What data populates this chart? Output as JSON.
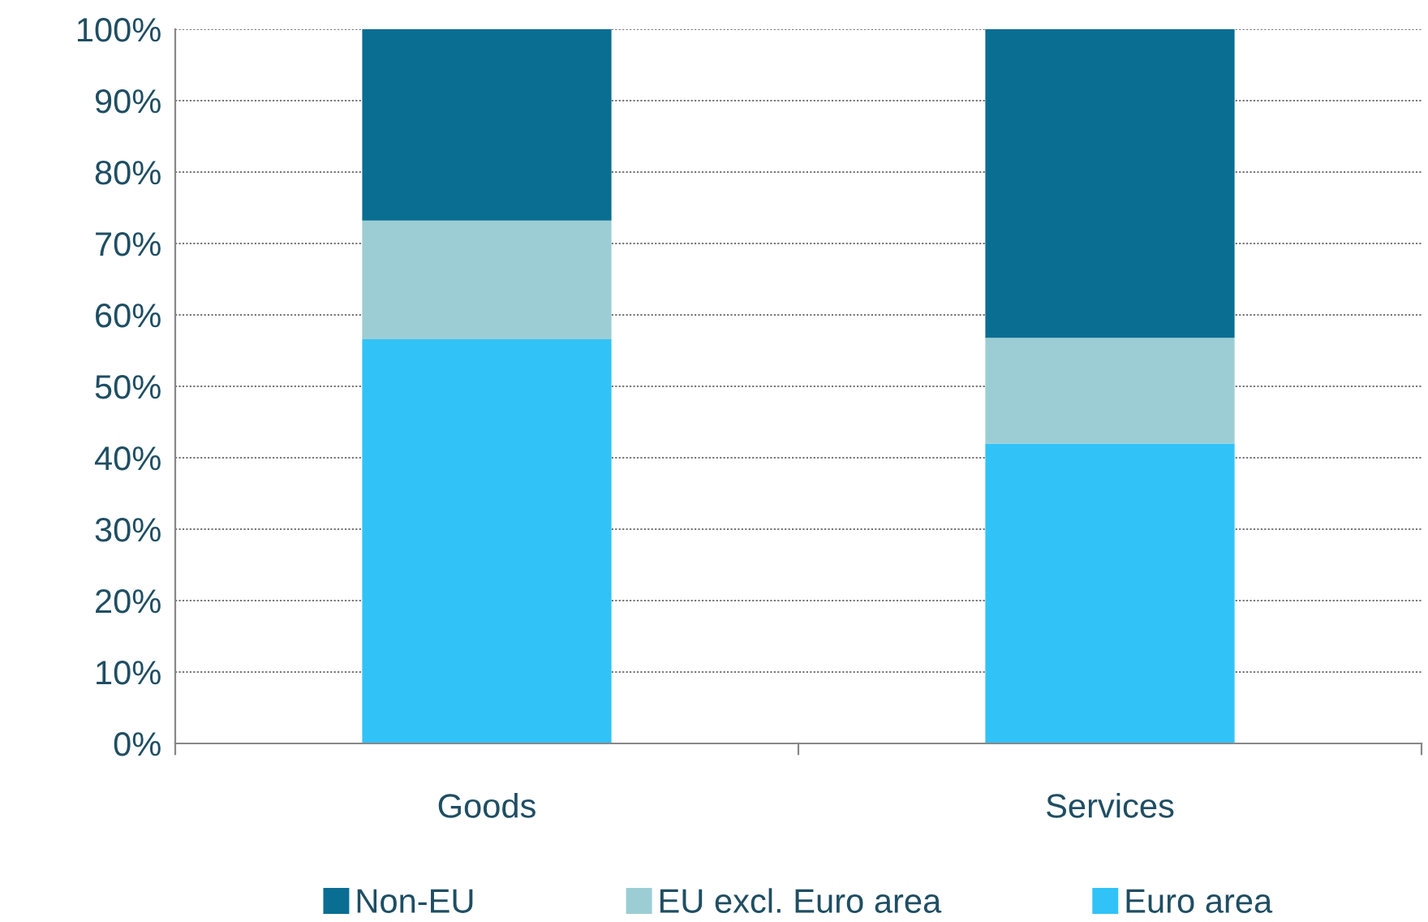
{
  "chart_data": {
    "type": "bar",
    "stacked": true,
    "categories": [
      "Goods",
      "Services"
    ],
    "series": [
      {
        "name": "Euro area",
        "color": "#31c3f7",
        "values": [
          56.6,
          42.0
        ]
      },
      {
        "name": "EU excl. Euro area",
        "color": "#9ccdd4",
        "values": [
          16.6,
          14.8
        ]
      },
      {
        "name": "Non-EU",
        "color": "#0a6e92",
        "values": [
          26.8,
          43.2
        ]
      }
    ],
    "ylim": [
      0,
      100
    ],
    "yticks": [
      {
        "value": 0,
        "label": "0%"
      },
      {
        "value": 10,
        "label": "10%"
      },
      {
        "value": 20,
        "label": "20%"
      },
      {
        "value": 30,
        "label": "30%"
      },
      {
        "value": 40,
        "label": "40%"
      },
      {
        "value": 50,
        "label": "50%"
      },
      {
        "value": 60,
        "label": "60%"
      },
      {
        "value": 70,
        "label": "70%"
      },
      {
        "value": 80,
        "label": "80%"
      },
      {
        "value": 90,
        "label": "90%"
      },
      {
        "value": 100,
        "label": "100%"
      }
    ],
    "grid": "y",
    "legend": "bottom"
  }
}
